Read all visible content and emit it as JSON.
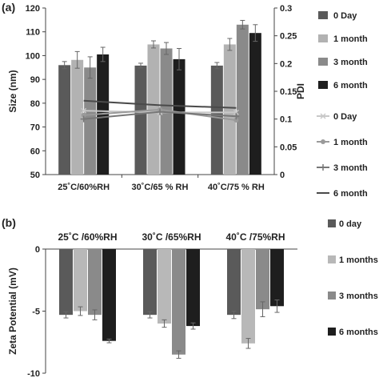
{
  "chart_data": [
    {
      "panel_label": "(a)",
      "type": "bar",
      "categories": [
        "25˚C/60%RH",
        "30˚C/65 % RH",
        "40˚C/75 % RH"
      ],
      "ylabel": "Size  (nm)",
      "y2label": "PDI",
      "ylim": [
        50,
        120
      ],
      "y2lim": [
        0,
        0.3
      ],
      "yticks": [
        50,
        60,
        70,
        80,
        90,
        100,
        110,
        120
      ],
      "y2ticks": [
        "0",
        "0.05",
        "0.1",
        "0.15",
        "0.2",
        "0.25",
        "0.3"
      ],
      "legend_position": "right",
      "series": [
        {
          "name": "0 Day",
          "color": "#5a5a5a",
          "values": [
            96,
            95.8,
            95.8
          ],
          "errors": [
            1.5,
            1.0,
            1.3
          ]
        },
        {
          "name": "1 month",
          "color": "#b2b2b2",
          "values": [
            98.2,
            104.7,
            104.7
          ],
          "errors": [
            3.5,
            1.5,
            2.5
          ]
        },
        {
          "name": "3 month",
          "color": "#8a8a8a",
          "values": [
            95,
            103,
            113
          ],
          "errors": [
            4.5,
            2.5,
            1.8
          ]
        },
        {
          "name": "6 month",
          "color": "#1e1e1e",
          "values": [
            100.5,
            98.5,
            109.5
          ],
          "errors": [
            3.0,
            4.5,
            3.5
          ]
        }
      ],
      "line_series": [
        {
          "name": "0 Day",
          "color": "#c8c8c8",
          "marker": "x",
          "values": [
            0.115,
            0.112,
            0.112
          ]
        },
        {
          "name": "1 month",
          "color": "#9a9a9a",
          "marker": "circle",
          "values": [
            0.107,
            0.117,
            0.098
          ]
        },
        {
          "name": "3 month",
          "color": "#777777",
          "marker": "plus",
          "values": [
            0.1,
            0.113,
            0.105
          ]
        },
        {
          "name": "6 month",
          "color": "#4a4a4a",
          "marker": "none",
          "values": [
            0.133,
            0.125,
            0.12
          ]
        }
      ]
    },
    {
      "panel_label": "(b)",
      "type": "bar",
      "categories": [
        "25˚C /60%RH",
        "30˚C /65%RH",
        "40˚C /75%RH"
      ],
      "ylabel": "Zeta Potential  (mV)",
      "ylim": [
        -10,
        0
      ],
      "yticks": [
        0,
        -5,
        -10
      ],
      "legend_position": "right",
      "series": [
        {
          "name": "0 day",
          "color": "#5a5a5a",
          "values": [
            -5.3,
            -5.3,
            -5.3
          ],
          "errors": [
            0.25,
            0.25,
            0.3
          ]
        },
        {
          "name": "1 months",
          "color": "#b8b8b8",
          "values": [
            -5.0,
            -6.0,
            -7.6
          ],
          "errors": [
            0.35,
            0.3,
            0.4
          ]
        },
        {
          "name": "3 months",
          "color": "#8a8a8a",
          "values": [
            -5.3,
            -8.5,
            -4.85
          ],
          "errors": [
            0.4,
            0.3,
            0.6
          ]
        },
        {
          "name": "6 months",
          "color": "#1e1e1e",
          "values": [
            -7.4,
            -6.2,
            -4.6
          ],
          "errors": [
            0.15,
            0.25,
            0.5
          ]
        }
      ]
    }
  ]
}
